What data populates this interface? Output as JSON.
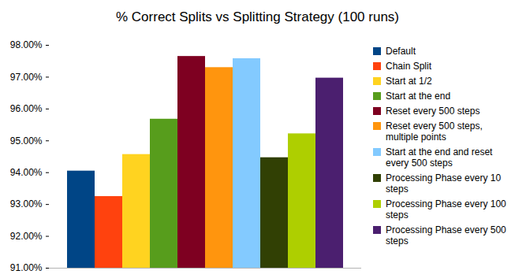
{
  "chart_data": {
    "type": "bar",
    "title": "% Correct Splits vs Splitting Strategy (100 runs)",
    "categories": [
      "Default",
      "Chain Split",
      "Start at 1/2",
      "Start at the end",
      "Reset every 500 steps",
      "Reset every 500 steps, multiple points",
      "Start at the end and reset every 500 steps",
      "Processing Phase every 10 steps",
      "Processing Phase every 100 steps",
      "Processing Phase every 500 steps"
    ],
    "values": [
      94.05,
      93.25,
      94.57,
      95.68,
      97.65,
      97.3,
      97.58,
      94.47,
      95.22,
      96.97
    ],
    "colors": [
      "#004586",
      "#ff420e",
      "#ffd320",
      "#579d1c",
      "#7e0021",
      "#ff950e",
      "#83caff",
      "#314004",
      "#aecf00",
      "#4b1f6f"
    ],
    "ylim": [
      91,
      98
    ],
    "yticks": [
      {
        "value": 91,
        "label": "91.00%"
      },
      {
        "value": 92,
        "label": "92.00%"
      },
      {
        "value": 93,
        "label": "93.00%"
      },
      {
        "value": 94,
        "label": "94.00%"
      },
      {
        "value": 95,
        "label": "95.00%"
      },
      {
        "value": 96,
        "label": "96.00%"
      },
      {
        "value": 97,
        "label": "97.00%"
      },
      {
        "value": 98,
        "label": "98.00%"
      }
    ],
    "grid": false,
    "legend": "right",
    "tick_labels": "y"
  }
}
